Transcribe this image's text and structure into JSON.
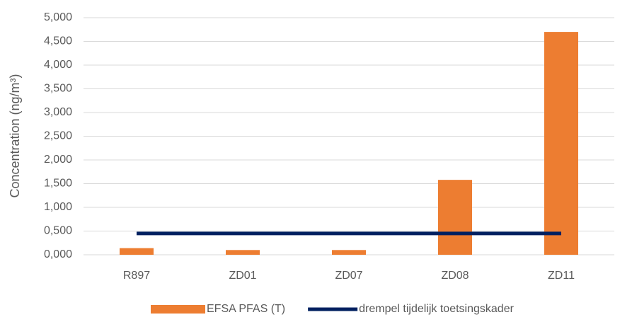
{
  "chart_data": {
    "type": "bar",
    "y_label": "Concentration (ng/m³)",
    "categories": [
      "R897",
      "ZD01",
      "ZD07",
      "ZD08",
      "ZD11"
    ],
    "series": [
      {
        "name": "EFSA PFAS (T)",
        "type": "bar",
        "color": "#ED7D31",
        "values": [
          0.14,
          0.1,
          0.1,
          1.58,
          4.7
        ]
      },
      {
        "name": "drempel tijdelijk toetsingskader",
        "type": "line",
        "color": "#002060",
        "values": [
          0.45,
          0.45,
          0.45,
          0.45,
          0.45
        ]
      }
    ],
    "ylim": [
      0,
      5
    ],
    "yticks": [
      {
        "value": 0,
        "label": "0,000"
      },
      {
        "value": 0.5,
        "label": "0,500"
      },
      {
        "value": 1,
        "label": "1,000"
      },
      {
        "value": 1.5,
        "label": "1,500"
      },
      {
        "value": 2,
        "label": "2,000"
      },
      {
        "value": 2.5,
        "label": "2,500"
      },
      {
        "value": 3,
        "label": "3,000"
      },
      {
        "value": 3.5,
        "label": "3,500"
      },
      {
        "value": 4,
        "label": "4,000"
      },
      {
        "value": 4.5,
        "label": "4,500"
      },
      {
        "value": 5,
        "label": "5,000"
      }
    ],
    "grid": true,
    "legend": "bottom"
  }
}
